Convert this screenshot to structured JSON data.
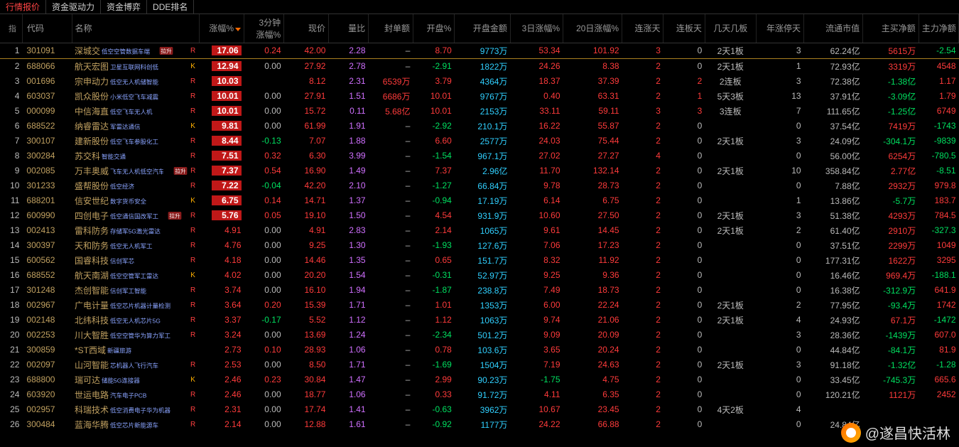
{
  "tabs": [
    "行情报价",
    "资金驱动力",
    "资金博弈",
    "DDE排名"
  ],
  "activeTab": 0,
  "pinLabel": "指",
  "headers": {
    "idx": "",
    "code": "代码",
    "name": "名称",
    "chg": "涨幅%",
    "chg3m": "3分钟\n涨幅%",
    "price": "现价",
    "volr": "量比",
    "seal": "封单额",
    "openp": "开盘%",
    "openamt": "开盘金额",
    "d3": "3日涨幅%",
    "d20": "20日涨幅%",
    "cup": "连涨天",
    "cboard": "连板天",
    "pattern": "几天几板",
    "ystop": "年涨停天",
    "mcap": "流通市值",
    "mbuy": "主买净额",
    "mflow": "主力净额"
  },
  "colors": {
    "up": "#ff3b3b",
    "down": "#00e060",
    "amount": "#30d0ff",
    "volr": "#d070ff",
    "neutral": "#bbbbbb",
    "code": "#c0a060",
    "bg": "#000000",
    "chgBox": "#c01818"
  },
  "watermark": "@遂昌快活林",
  "rows": [
    {
      "idx": 1,
      "code": "301091",
      "name": "深城交",
      "tag": "低空空管数据车端",
      "badge": "拉升",
      "flag": "R",
      "chg": "17.06",
      "chgBox": true,
      "chg3m": {
        "v": "0.24",
        "c": "red"
      },
      "price": "42.00",
      "volr": "2.28",
      "seal": "–",
      "openp": {
        "v": "8.70",
        "c": "red"
      },
      "openamt": "9773万",
      "d3": "53.34",
      "d20": "101.92",
      "cup": "3",
      "cboard": "0",
      "pattern": "2天1板",
      "ystop": "3",
      "mcap": "62.24亿",
      "mbuy": {
        "v": "5615万",
        "c": "red"
      },
      "mflow": {
        "v": "-2.54",
        "c": "green"
      }
    },
    {
      "idx": 2,
      "code": "688066",
      "name": "航天宏图",
      "tag": "卫星互联网科创低",
      "badge": "",
      "flag": "K",
      "chg": "12.94",
      "chgBox": true,
      "chg3m": {
        "v": "0.00",
        "c": "gray"
      },
      "price": "27.92",
      "volr": "2.78",
      "seal": "–",
      "openp": {
        "v": "-2.91",
        "c": "green"
      },
      "openamt": "1822万",
      "d3": "24.26",
      "d20": "8.38",
      "cup": "2",
      "cboard": "0",
      "pattern": "2天1板",
      "ystop": "1",
      "mcap": "72.93亿",
      "mbuy": {
        "v": "3319万",
        "c": "red"
      },
      "mflow": {
        "v": "4548",
        "c": "red"
      }
    },
    {
      "idx": 3,
      "code": "001696",
      "name": "宗申动力",
      "tag": "低空无人机储智能",
      "badge": "",
      "flag": "R",
      "chg": "10.03",
      "chgBox": true,
      "chg3m": {
        "v": "",
        "c": "gray"
      },
      "price": "8.12",
      "volr": "2.31",
      "seal": "6539万",
      "openp": {
        "v": "3.79",
        "c": "red"
      },
      "openamt": "4364万",
      "d3": "18.37",
      "d20": "37.39",
      "cup": "2",
      "cboard": "2",
      "pattern": "2连板",
      "ystop": "3",
      "mcap": "72.38亿",
      "mbuy": {
        "v": "-1.38亿",
        "c": "green"
      },
      "mflow": {
        "v": "1.17",
        "c": "red"
      }
    },
    {
      "idx": 4,
      "code": "603037",
      "name": "凯众股份",
      "tag": "小米低空飞车减震",
      "badge": "",
      "flag": "R",
      "chg": "10.01",
      "chgBox": true,
      "chg3m": {
        "v": "0.00",
        "c": "gray"
      },
      "price": "27.91",
      "volr": "1.51",
      "seal": "6686万",
      "openp": {
        "v": "10.01",
        "c": "red"
      },
      "openamt": "9767万",
      "d3": "0.40",
      "d20": "63.31",
      "cup": "2",
      "cboard": "1",
      "pattern": "5天3板",
      "ystop": "13",
      "mcap": "37.91亿",
      "mbuy": {
        "v": "-3.09亿",
        "c": "green"
      },
      "mflow": {
        "v": "1.79",
        "c": "red"
      }
    },
    {
      "idx": 5,
      "code": "000099",
      "name": "中信海直",
      "tag": "低空飞车无人机",
      "badge": "",
      "flag": "R",
      "chg": "10.01",
      "chgBox": true,
      "chg3m": {
        "v": "0.00",
        "c": "gray"
      },
      "price": "15.72",
      "volr": "0.11",
      "seal": "5.68亿",
      "openp": {
        "v": "10.01",
        "c": "red"
      },
      "openamt": "2153万",
      "d3": "33.11",
      "d20": "59.11",
      "cup": "3",
      "cboard": "3",
      "pattern": "3连板",
      "ystop": "7",
      "mcap": "111.65亿",
      "mbuy": {
        "v": "-1.25亿",
        "c": "green"
      },
      "mflow": {
        "v": "6749",
        "c": "red"
      }
    },
    {
      "idx": 6,
      "code": "688522",
      "name": "纳睿雷达",
      "tag": "军雷达通信",
      "badge": "",
      "flag": "K",
      "chg": "9.81",
      "chgBox": true,
      "chg3m": {
        "v": "0.00",
        "c": "gray"
      },
      "price": "61.99",
      "volr": "1.91",
      "seal": "–",
      "openp": {
        "v": "-2.92",
        "c": "green"
      },
      "openamt": "210.1万",
      "d3": "16.22",
      "d20": "55.87",
      "cup": "2",
      "cboard": "0",
      "pattern": "",
      "ystop": "0",
      "mcap": "37.54亿",
      "mbuy": {
        "v": "7419万",
        "c": "red"
      },
      "mflow": {
        "v": "-1743",
        "c": "green"
      }
    },
    {
      "idx": 7,
      "code": "300107",
      "name": "建新股份",
      "tag": "低空飞车参股化工",
      "badge": "",
      "flag": "R",
      "chg": "8.44",
      "chgBox": true,
      "chg3m": {
        "v": "-0.13",
        "c": "green"
      },
      "price": "7.07",
      "volr": "1.88",
      "seal": "–",
      "openp": {
        "v": "6.60",
        "c": "red"
      },
      "openamt": "2577万",
      "d3": "24.03",
      "d20": "75.44",
      "cup": "2",
      "cboard": "0",
      "pattern": "2天1板",
      "ystop": "3",
      "mcap": "24.09亿",
      "mbuy": {
        "v": "-304.1万",
        "c": "green"
      },
      "mflow": {
        "v": "-9839",
        "c": "green"
      }
    },
    {
      "idx": 8,
      "code": "300284",
      "name": "苏交科",
      "tag": "智能交通",
      "badge": "",
      "flag": "R",
      "chg": "7.51",
      "chgBox": true,
      "chg3m": {
        "v": "0.32",
        "c": "red"
      },
      "price": "6.30",
      "volr": "3.99",
      "seal": "–",
      "openp": {
        "v": "-1.54",
        "c": "green"
      },
      "openamt": "967.1万",
      "d3": "27.02",
      "d20": "27.27",
      "cup": "4",
      "cboard": "0",
      "pattern": "",
      "ystop": "0",
      "mcap": "56.00亿",
      "mbuy": {
        "v": "6254万",
        "c": "red"
      },
      "mflow": {
        "v": "-780.5",
        "c": "green"
      }
    },
    {
      "idx": 9,
      "code": "002085",
      "name": "万丰奥威",
      "tag": "飞车无人机低空汽车",
      "badge": "拉升",
      "flag": "R",
      "chg": "7.37",
      "chgBox": true,
      "chg3m": {
        "v": "0.54",
        "c": "red"
      },
      "price": "16.90",
      "volr": "1.49",
      "seal": "–",
      "openp": {
        "v": "7.37",
        "c": "red"
      },
      "openamt": "2.96亿",
      "d3": "11.70",
      "d20": "132.14",
      "cup": "2",
      "cboard": "0",
      "pattern": "2天1板",
      "ystop": "10",
      "mcap": "358.84亿",
      "mbuy": {
        "v": "2.77亿",
        "c": "red"
      },
      "mflow": {
        "v": "-8.51",
        "c": "green"
      }
    },
    {
      "idx": 10,
      "code": "301233",
      "name": "盛帮股份",
      "tag": "低空经济",
      "badge": "",
      "flag": "R",
      "chg": "7.22",
      "chgBox": true,
      "chg3m": {
        "v": "-0.04",
        "c": "green"
      },
      "price": "42.20",
      "volr": "2.10",
      "seal": "–",
      "openp": {
        "v": "-1.27",
        "c": "green"
      },
      "openamt": "66.84万",
      "d3": "9.78",
      "d20": "28.73",
      "cup": "2",
      "cboard": "0",
      "pattern": "",
      "ystop": "0",
      "mcap": "7.88亿",
      "mbuy": {
        "v": "2932万",
        "c": "red"
      },
      "mflow": {
        "v": "979.8",
        "c": "red"
      }
    },
    {
      "idx": 11,
      "code": "688201",
      "name": "信安世纪",
      "tag": "数字货币安全",
      "badge": "",
      "flag": "K",
      "chg": "6.75",
      "chgBox": true,
      "chg3m": {
        "v": "0.14",
        "c": "red"
      },
      "price": "14.71",
      "volr": "1.37",
      "seal": "–",
      "openp": {
        "v": "-0.94",
        "c": "green"
      },
      "openamt": "17.19万",
      "d3": "6.14",
      "d20": "6.75",
      "cup": "2",
      "cboard": "0",
      "pattern": "",
      "ystop": "1",
      "mcap": "13.86亿",
      "mbuy": {
        "v": "-5.7万",
        "c": "green"
      },
      "mflow": {
        "v": "183.7",
        "c": "red"
      }
    },
    {
      "idx": 12,
      "code": "600990",
      "name": "四创电子",
      "tag": "低空通信国改军工",
      "badge": "拉升",
      "flag": "R",
      "chg": "5.76",
      "chgBox": true,
      "chg3m": {
        "v": "0.05",
        "c": "red"
      },
      "price": "19.10",
      "volr": "1.50",
      "seal": "–",
      "openp": {
        "v": "4.54",
        "c": "red"
      },
      "openamt": "931.9万",
      "d3": "10.60",
      "d20": "27.50",
      "cup": "2",
      "cboard": "0",
      "pattern": "2天1板",
      "ystop": "3",
      "mcap": "51.38亿",
      "mbuy": {
        "v": "4293万",
        "c": "red"
      },
      "mflow": {
        "v": "784.5",
        "c": "red"
      }
    },
    {
      "idx": 13,
      "code": "002413",
      "name": "雷科防务",
      "tag": "存储军5G激光雷达",
      "badge": "",
      "flag": "R",
      "chg": "4.91",
      "chgBox": false,
      "chg3m": {
        "v": "0.00",
        "c": "gray"
      },
      "price": "4.91",
      "volr": "2.83",
      "seal": "–",
      "openp": {
        "v": "2.14",
        "c": "red"
      },
      "openamt": "1065万",
      "d3": "9.61",
      "d20": "14.45",
      "cup": "2",
      "cboard": "0",
      "pattern": "2天1板",
      "ystop": "2",
      "mcap": "61.40亿",
      "mbuy": {
        "v": "2910万",
        "c": "red"
      },
      "mflow": {
        "v": "-327.3",
        "c": "green"
      }
    },
    {
      "idx": 14,
      "code": "300397",
      "name": "天和防务",
      "tag": "低空无人机军工",
      "badge": "",
      "flag": "R",
      "chg": "4.76",
      "chgBox": false,
      "chg3m": {
        "v": "0.00",
        "c": "gray"
      },
      "price": "9.25",
      "volr": "1.30",
      "seal": "–",
      "openp": {
        "v": "-1.93",
        "c": "green"
      },
      "openamt": "127.6万",
      "d3": "7.06",
      "d20": "17.23",
      "cup": "2",
      "cboard": "0",
      "pattern": "",
      "ystop": "0",
      "mcap": "37.51亿",
      "mbuy": {
        "v": "2299万",
        "c": "red"
      },
      "mflow": {
        "v": "1049",
        "c": "red"
      }
    },
    {
      "idx": 15,
      "code": "600562",
      "name": "国睿科技",
      "tag": "信创军芯",
      "badge": "",
      "flag": "R",
      "chg": "4.18",
      "chgBox": false,
      "chg3m": {
        "v": "0.00",
        "c": "gray"
      },
      "price": "14.46",
      "volr": "1.35",
      "seal": "–",
      "openp": {
        "v": "0.65",
        "c": "red"
      },
      "openamt": "151.7万",
      "d3": "8.32",
      "d20": "11.92",
      "cup": "2",
      "cboard": "0",
      "pattern": "",
      "ystop": "0",
      "mcap": "177.31亿",
      "mbuy": {
        "v": "1622万",
        "c": "red"
      },
      "mflow": {
        "v": "3295",
        "c": "red"
      }
    },
    {
      "idx": 16,
      "code": "688552",
      "name": "航天南湖",
      "tag": "低空空管军工雷达",
      "badge": "",
      "flag": "K",
      "chg": "4.02",
      "chgBox": false,
      "chg3m": {
        "v": "0.00",
        "c": "gray"
      },
      "price": "20.20",
      "volr": "1.54",
      "seal": "–",
      "openp": {
        "v": "-0.31",
        "c": "green"
      },
      "openamt": "52.97万",
      "d3": "9.25",
      "d20": "9.36",
      "cup": "2",
      "cboard": "0",
      "pattern": "",
      "ystop": "0",
      "mcap": "16.46亿",
      "mbuy": {
        "v": "969.4万",
        "c": "red"
      },
      "mflow": {
        "v": "-188.1",
        "c": "green"
      }
    },
    {
      "idx": 17,
      "code": "301248",
      "name": "杰创智能",
      "tag": "信创军工智能",
      "badge": "",
      "flag": "R",
      "chg": "3.74",
      "chgBox": false,
      "chg3m": {
        "v": "0.00",
        "c": "gray"
      },
      "price": "16.10",
      "volr": "1.94",
      "seal": "–",
      "openp": {
        "v": "-1.87",
        "c": "green"
      },
      "openamt": "238.8万",
      "d3": "7.49",
      "d20": "18.73",
      "cup": "2",
      "cboard": "0",
      "pattern": "",
      "ystop": "0",
      "mcap": "16.38亿",
      "mbuy": {
        "v": "-312.9万",
        "c": "green"
      },
      "mflow": {
        "v": "641.9",
        "c": "red"
      }
    },
    {
      "idx": 18,
      "code": "002967",
      "name": "广电计量",
      "tag": "低空芯片机器计量检测",
      "badge": "",
      "flag": "R",
      "chg": "3.64",
      "chgBox": false,
      "chg3m": {
        "v": "0.20",
        "c": "red"
      },
      "price": "15.39",
      "volr": "1.71",
      "seal": "–",
      "openp": {
        "v": "1.01",
        "c": "red"
      },
      "openamt": "1353万",
      "d3": "6.00",
      "d20": "22.24",
      "cup": "2",
      "cboard": "0",
      "pattern": "2天1板",
      "ystop": "2",
      "mcap": "77.95亿",
      "mbuy": {
        "v": "-93.4万",
        "c": "green"
      },
      "mflow": {
        "v": "1742",
        "c": "red"
      }
    },
    {
      "idx": 19,
      "code": "002148",
      "name": "北纬科技",
      "tag": "低空无人机芯片5G",
      "badge": "",
      "flag": "R",
      "chg": "3.37",
      "chgBox": false,
      "chg3m": {
        "v": "-0.17",
        "c": "green"
      },
      "price": "5.52",
      "volr": "1.12",
      "seal": "–",
      "openp": {
        "v": "1.12",
        "c": "red"
      },
      "openamt": "1063万",
      "d3": "9.74",
      "d20": "21.06",
      "cup": "2",
      "cboard": "0",
      "pattern": "2天1板",
      "ystop": "4",
      "mcap": "24.93亿",
      "mbuy": {
        "v": "67.1万",
        "c": "red"
      },
      "mflow": {
        "v": "-1472",
        "c": "green"
      }
    },
    {
      "idx": 20,
      "code": "002253",
      "name": "川大智胜",
      "tag": "低空空管华为算力军工",
      "badge": "",
      "flag": "R",
      "chg": "3.24",
      "chgBox": false,
      "chg3m": {
        "v": "0.00",
        "c": "gray"
      },
      "price": "13.69",
      "volr": "1.24",
      "seal": "–",
      "openp": {
        "v": "-2.34",
        "c": "green"
      },
      "openamt": "501.2万",
      "d3": "9.09",
      "d20": "20.09",
      "cup": "2",
      "cboard": "0",
      "pattern": "",
      "ystop": "3",
      "mcap": "28.36亿",
      "mbuy": {
        "v": "-1439万",
        "c": "green"
      },
      "mflow": {
        "v": "607.0",
        "c": "red"
      }
    },
    {
      "idx": 21,
      "code": "300859",
      "name": "*ST西域",
      "tag": "新疆旅游",
      "badge": "",
      "flag": "",
      "chg": "2.73",
      "chgBox": false,
      "chg3m": {
        "v": "0.10",
        "c": "red"
      },
      "price": "28.93",
      "volr": "1.06",
      "seal": "–",
      "openp": {
        "v": "0.78",
        "c": "red"
      },
      "openamt": "103.6万",
      "d3": "3.65",
      "d20": "20.24",
      "cup": "2",
      "cboard": "0",
      "pattern": "",
      "ystop": "0",
      "mcap": "44.84亿",
      "mbuy": {
        "v": "-84.1万",
        "c": "green"
      },
      "mflow": {
        "v": "81.9",
        "c": "red"
      }
    },
    {
      "idx": 22,
      "code": "002097",
      "name": "山河智能",
      "tag": "芯机器人飞行汽车",
      "badge": "",
      "flag": "R",
      "chg": "2.53",
      "chgBox": false,
      "chg3m": {
        "v": "0.00",
        "c": "gray"
      },
      "price": "8.50",
      "volr": "1.71",
      "seal": "–",
      "openp": {
        "v": "-1.69",
        "c": "green"
      },
      "openamt": "1504万",
      "d3": "7.19",
      "d20": "24.63",
      "cup": "2",
      "cboard": "0",
      "pattern": "2天1板",
      "ystop": "3",
      "mcap": "91.18亿",
      "mbuy": {
        "v": "-1.32亿",
        "c": "green"
      },
      "mflow": {
        "v": "-1.28",
        "c": "green"
      }
    },
    {
      "idx": 23,
      "code": "688800",
      "name": "瑞可达",
      "tag": "储能5G连接器",
      "badge": "",
      "flag": "K",
      "chg": "2.46",
      "chgBox": false,
      "chg3m": {
        "v": "0.23",
        "c": "red"
      },
      "price": "30.84",
      "volr": "1.47",
      "seal": "–",
      "openp": {
        "v": "2.99",
        "c": "red"
      },
      "openamt": "90.23万",
      "d3": "-1.75",
      "d20": "4.75",
      "cup": "2",
      "cboard": "0",
      "pattern": "",
      "ystop": "0",
      "mcap": "33.45亿",
      "mbuy": {
        "v": "-745.3万",
        "c": "green"
      },
      "mflow": {
        "v": "665.6",
        "c": "red"
      }
    },
    {
      "idx": 24,
      "code": "603920",
      "name": "世运电路",
      "tag": "汽车电子PCB",
      "badge": "",
      "flag": "R",
      "chg": "2.46",
      "chgBox": false,
      "chg3m": {
        "v": "0.00",
        "c": "gray"
      },
      "price": "18.77",
      "volr": "1.06",
      "seal": "–",
      "openp": {
        "v": "0.33",
        "c": "red"
      },
      "openamt": "91.72万",
      "d3": "4.11",
      "d20": "6.35",
      "cup": "2",
      "cboard": "0",
      "pattern": "",
      "ystop": "0",
      "mcap": "120.21亿",
      "mbuy": {
        "v": "1121万",
        "c": "red"
      },
      "mflow": {
        "v": "2452",
        "c": "red"
      }
    },
    {
      "idx": 25,
      "code": "002957",
      "name": "科瑞技术",
      "tag": "低空消费电子华为机器",
      "badge": "",
      "flag": "R",
      "chg": "2.31",
      "chgBox": false,
      "chg3m": {
        "v": "0.00",
        "c": "gray"
      },
      "price": "17.74",
      "volr": "1.41",
      "seal": "–",
      "openp": {
        "v": "-0.63",
        "c": "green"
      },
      "openamt": "3962万",
      "d3": "10.67",
      "d20": "23.45",
      "cup": "2",
      "cboard": "0",
      "pattern": "4天2板",
      "ystop": "4",
      "mcap": "",
      "mbuy": {
        "v": "",
        "c": "gray"
      },
      "mflow": {
        "v": "",
        "c": "gray"
      }
    },
    {
      "idx": 26,
      "code": "300484",
      "name": "蓝海华腾",
      "tag": "低空芯片新能源车",
      "badge": "",
      "flag": "R",
      "chg": "2.14",
      "chgBox": false,
      "chg3m": {
        "v": "0.00",
        "c": "gray"
      },
      "price": "12.88",
      "volr": "1.61",
      "seal": "–",
      "openp": {
        "v": "-0.92",
        "c": "green"
      },
      "openamt": "1177万",
      "d3": "24.22",
      "d20": "66.88",
      "cup": "2",
      "cboard": "0",
      "pattern": "",
      "ystop": "0",
      "mcap": "24.84亿",
      "mbuy": {
        "v": "",
        "c": "gray"
      },
      "mflow": {
        "v": "",
        "c": "gray"
      }
    }
  ]
}
